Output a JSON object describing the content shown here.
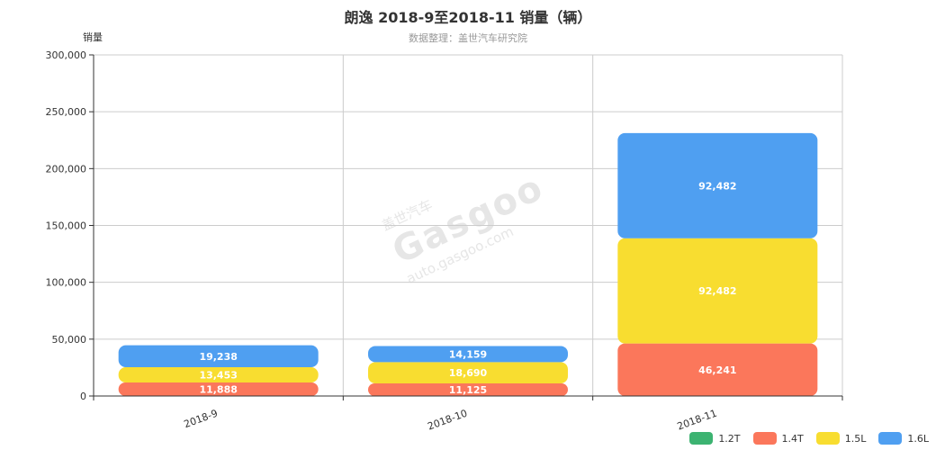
{
  "chart_data": {
    "type": "bar",
    "stacked": true,
    "title": "朗逸 2018-9至2018-11 销量（辆）",
    "subtitle": "数据整理：盖世汽车研究院",
    "ylabel": "销量",
    "ylim": [
      0,
      300000
    ],
    "y_ticks": [
      "0",
      "50,000",
      "100,000",
      "150,000",
      "200,000",
      "250,000",
      "300,000"
    ],
    "y_tick_values": [
      0,
      50000,
      100000,
      150000,
      200000,
      250000,
      300000
    ],
    "categories": [
      "2018-9",
      "2018-10",
      "2018-11"
    ],
    "series": [
      {
        "name": "1.2T",
        "color": "#3cb371",
        "values": [
          0,
          0,
          0
        ],
        "labels": [
          "",
          "",
          ""
        ]
      },
      {
        "name": "1.4T",
        "color": "#fb775b",
        "values": [
          11888,
          11125,
          46241
        ],
        "labels": [
          "11,888",
          "11,125",
          "46,241"
        ]
      },
      {
        "name": "1.5L",
        "color": "#f8dd30",
        "values": [
          13453,
          18690,
          92482
        ],
        "labels": [
          "13,453",
          "18,690",
          "92,482"
        ]
      },
      {
        "name": "1.6L",
        "color": "#4f9ff1",
        "values": [
          19238,
          14159,
          92482
        ],
        "labels": [
          "19,238",
          "14,159",
          "92,482"
        ]
      }
    ],
    "grid": true,
    "legend_position": "bottom-right"
  },
  "watermark": {
    "logo": "Gasgoo",
    "brand": "盖世汽车",
    "url": "auto.gasgoo.com"
  }
}
